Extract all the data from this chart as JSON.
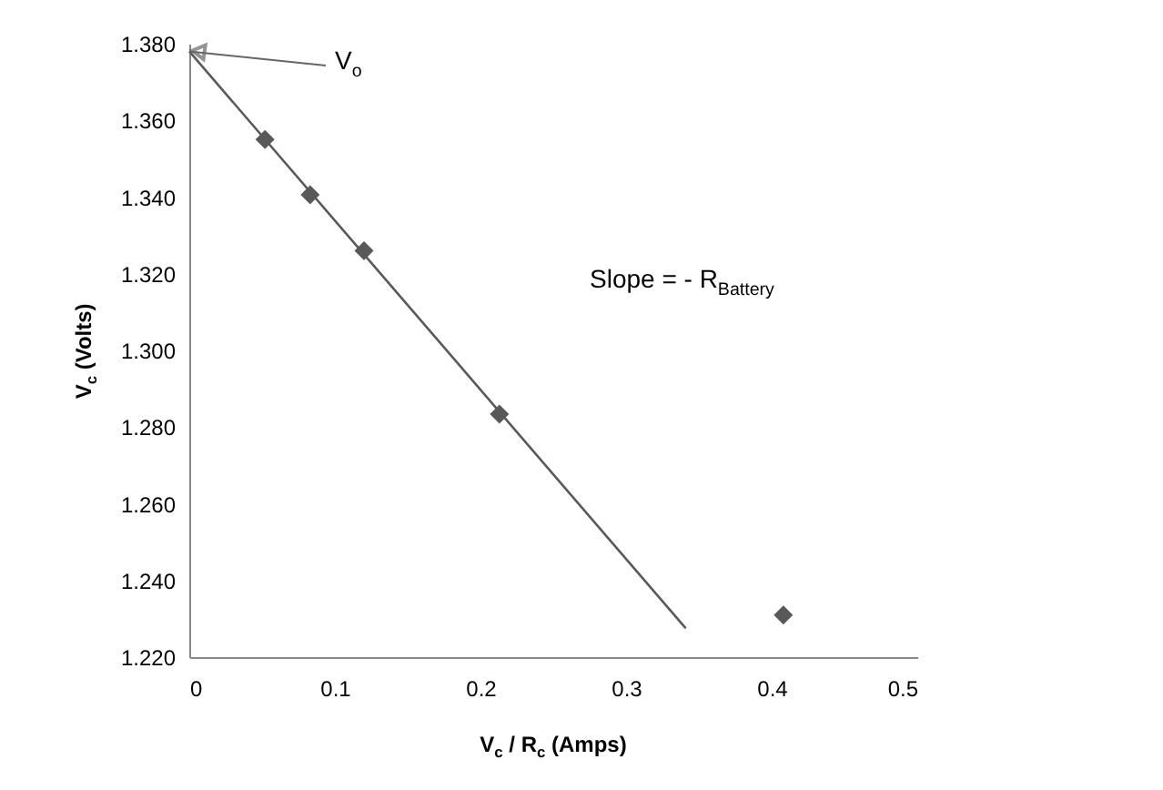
{
  "chart_data": {
    "type": "scatter",
    "xlabel": "V$_{c}$ / R$_{c}$ (Amps)",
    "ylabel": "V$_{c}$ (Volts)",
    "x": [
      0.052,
      0.083,
      0.12,
      0.213,
      0.408
    ],
    "series": [
      {
        "color": "#595959",
        "marker": "diamond",
        "values": [
          1.355,
          1.3406,
          1.326,
          1.2834,
          1.231
        ]
      },
      {
        "type": "line",
        "color": "#595959",
        "x": [
          0,
          0.341
        ],
        "values": [
          1.378,
          1.2275
        ]
      }
    ],
    "xlim": [
      0,
      0.5
    ],
    "xticks": [
      0,
      0.1,
      0.2,
      0.3,
      0.4,
      0.5
    ],
    "ylim": [
      1.22,
      1.38
    ],
    "yticks": [
      {
        "value": 1.22,
        "label": "1.220"
      },
      {
        "value": 1.24,
        "label": "1.240"
      },
      {
        "value": 1.26,
        "label": "1.260"
      },
      {
        "value": 1.28,
        "label": "1.280"
      },
      {
        "value": 1.3,
        "label": "1.300"
      },
      {
        "value": 1.32,
        "label": "1.320"
      },
      {
        "value": 1.34,
        "label": "1.340"
      },
      {
        "value": 1.36,
        "label": "1.360"
      },
      {
        "value": 1.38,
        "label": "1.380"
      }
    ],
    "grid": false,
    "annotations": [
      {
        "text": "V$_{o}$",
        "x": 0,
        "y": 1.378
      },
      "Slope = - R$_{Battery}$"
    ]
  }
}
